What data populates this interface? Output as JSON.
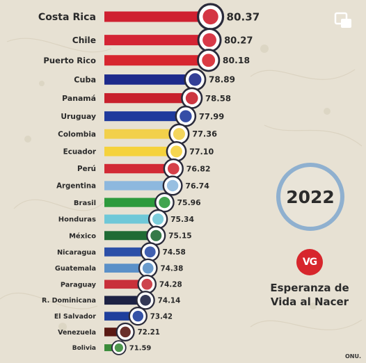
{
  "chart_data": {
    "type": "bar",
    "orientation": "horizontal",
    "title": "",
    "year": "2022",
    "subtitle_lines": [
      "Esperanza de",
      "Vida al Nacer"
    ],
    "logo_text": "VG",
    "source": "ONU.",
    "categories": [
      "Costa Rica",
      "Chile",
      "Puerto Rico",
      "Cuba",
      "Panamá",
      "Uruguay",
      "Colombia",
      "Ecuador",
      "Perú",
      "Argentina",
      "Brasil",
      "Honduras",
      "México",
      "Nicaragua",
      "Guatemala",
      "Paraguay",
      "R. Dominicana",
      "El Salvador",
      "Venezuela",
      "Bolivia"
    ],
    "values": [
      80.37,
      80.27,
      80.18,
      78.89,
      78.58,
      77.99,
      77.36,
      77.1,
      76.82,
      76.74,
      75.96,
      75.34,
      75.15,
      74.58,
      74.38,
      74.28,
      74.14,
      73.42,
      72.21,
      71.59
    ],
    "value_labels": [
      "80.37",
      "80.27",
      "80.18",
      "78.89",
      "78.58",
      "77.99",
      "77.36",
      "77.10",
      "76.82",
      "76.74",
      "75.96",
      "75.34",
      "75.15",
      "74.58",
      "74.38",
      "74.28",
      "74.14",
      "73.42",
      "72.21",
      "71.59"
    ],
    "bar_colors": [
      "#cf2030",
      "#d42434",
      "#d7262f",
      "#1d2a8c",
      "#c8202c",
      "#1f3a9c",
      "#f2d04a",
      "#f5d23c",
      "#d22a35",
      "#8db8de",
      "#2d9a3c",
      "#6fc8d8",
      "#1f6b35",
      "#2c4fa8",
      "#5a90c8",
      "#c8303a",
      "#1d2244",
      "#1f3f9c",
      "#5a1a14",
      "#3a8c3a"
    ],
    "flags": [
      "costa-rica",
      "chile",
      "puerto-rico",
      "cuba",
      "panama",
      "uruguay",
      "colombia",
      "ecuador",
      "peru",
      "argentina",
      "brasil",
      "honduras",
      "mexico",
      "nicaragua",
      "guatemala",
      "paraguay",
      "r-dominicana",
      "el-salvador",
      "venezuela",
      "bolivia"
    ],
    "grid": false,
    "xlim": [
      70,
      81
    ]
  }
}
